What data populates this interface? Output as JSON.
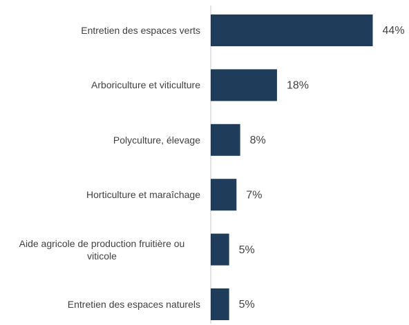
{
  "chart_data": {
    "type": "barh",
    "categories": [
      "Entretien des espaces verts",
      "Arboriculture et viticulture",
      "Polyculture, élevage",
      "Horticulture et maraîchage",
      "Aide agricole de production fruitière ou viticole",
      "Entretien des espaces naturels"
    ],
    "values": [
      44,
      18,
      8,
      7,
      5,
      5
    ],
    "value_labels": [
      "44%",
      "18%",
      "8%",
      "7%",
      "5%",
      "5%"
    ],
    "color": "#1f3d5a"
  }
}
